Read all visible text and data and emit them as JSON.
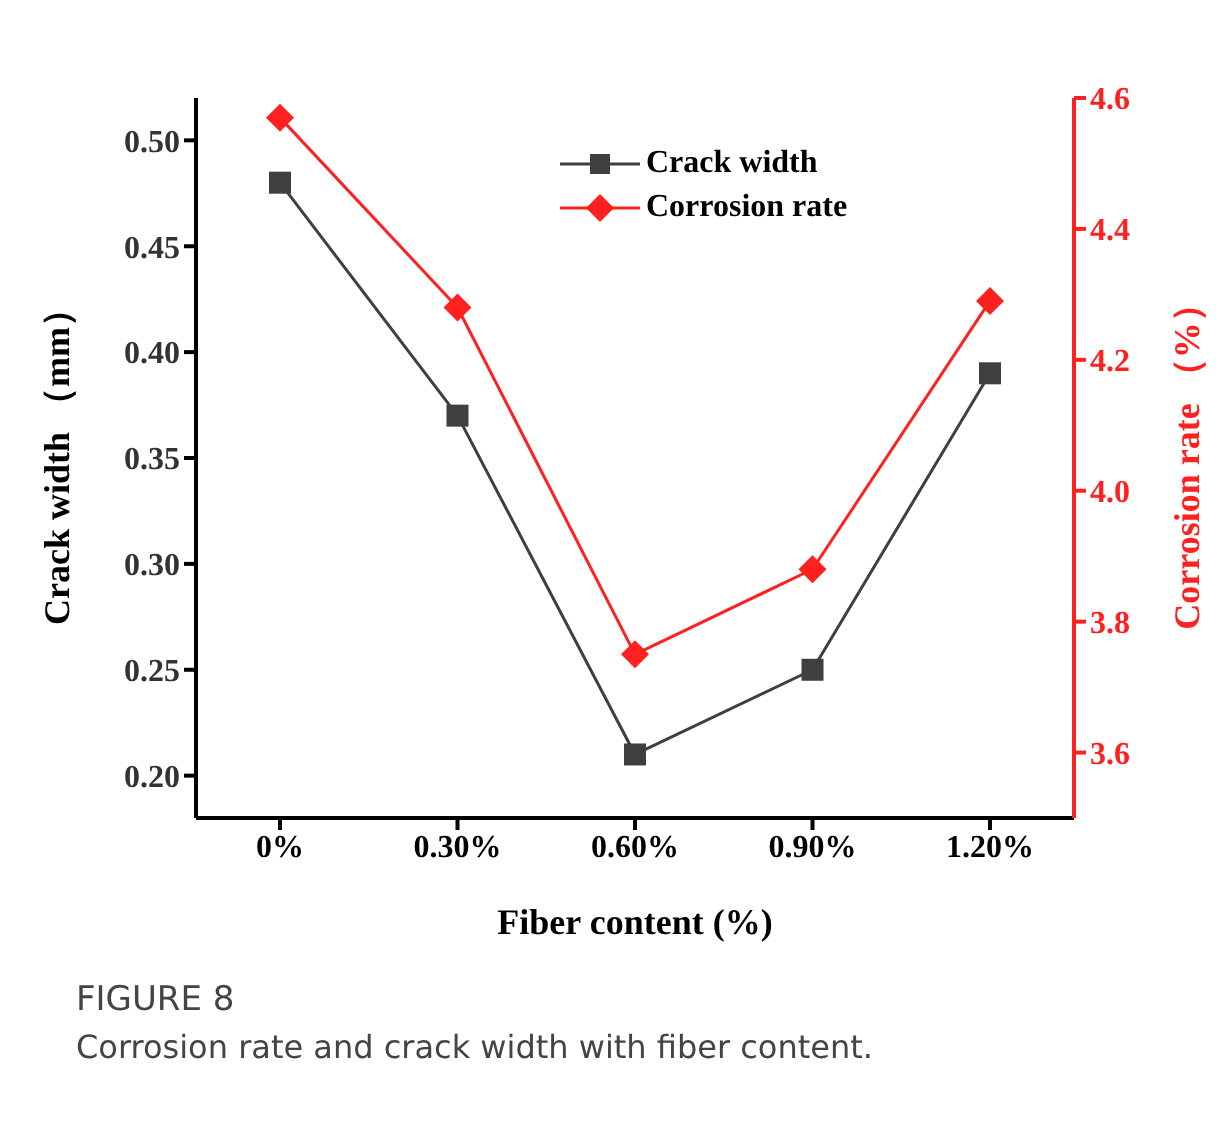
{
  "chart_data": {
    "type": "line",
    "categories": [
      "0%",
      "0.30%",
      "0.60%",
      "0.90%",
      "1.20%"
    ],
    "series": [
      {
        "name": "Crack width",
        "color": "#3f3f3f",
        "marker": "square",
        "values": [
          0.48,
          0.37,
          0.21,
          0.25,
          0.39
        ]
      },
      {
        "name": "Corrosion rate",
        "color": "#ff2020",
        "marker": "diamond",
        "axis": "y2",
        "values": [
          4.57,
          4.28,
          3.75,
          3.88,
          4.29
        ]
      }
    ],
    "xlabel": "Fiber content (%)",
    "ylabel": "Crack width （mm）",
    "y2label": "Corrosion rate （%）",
    "ylim": [
      0.18,
      0.52
    ],
    "yticks": [
      {
        "value": 0.2,
        "label": "0.20"
      },
      0.25,
      {
        "value": 0.3,
        "label": "0.30"
      },
      0.35,
      {
        "value": 0.4,
        "label": "0.40"
      },
      0.45,
      {
        "value": 0.5,
        "label": "0.50"
      }
    ],
    "y2lim": [
      3.5,
      4.6
    ],
    "y2ticks": [
      3.6,
      3.8,
      {
        "value": 4.0,
        "label": "4.0"
      },
      4.2,
      4.4,
      4.6
    ],
    "legend": "top",
    "grid": false,
    "annotations": [
      "FIGURE 8",
      "Corrosion rate and crack width with fiber content."
    ]
  }
}
